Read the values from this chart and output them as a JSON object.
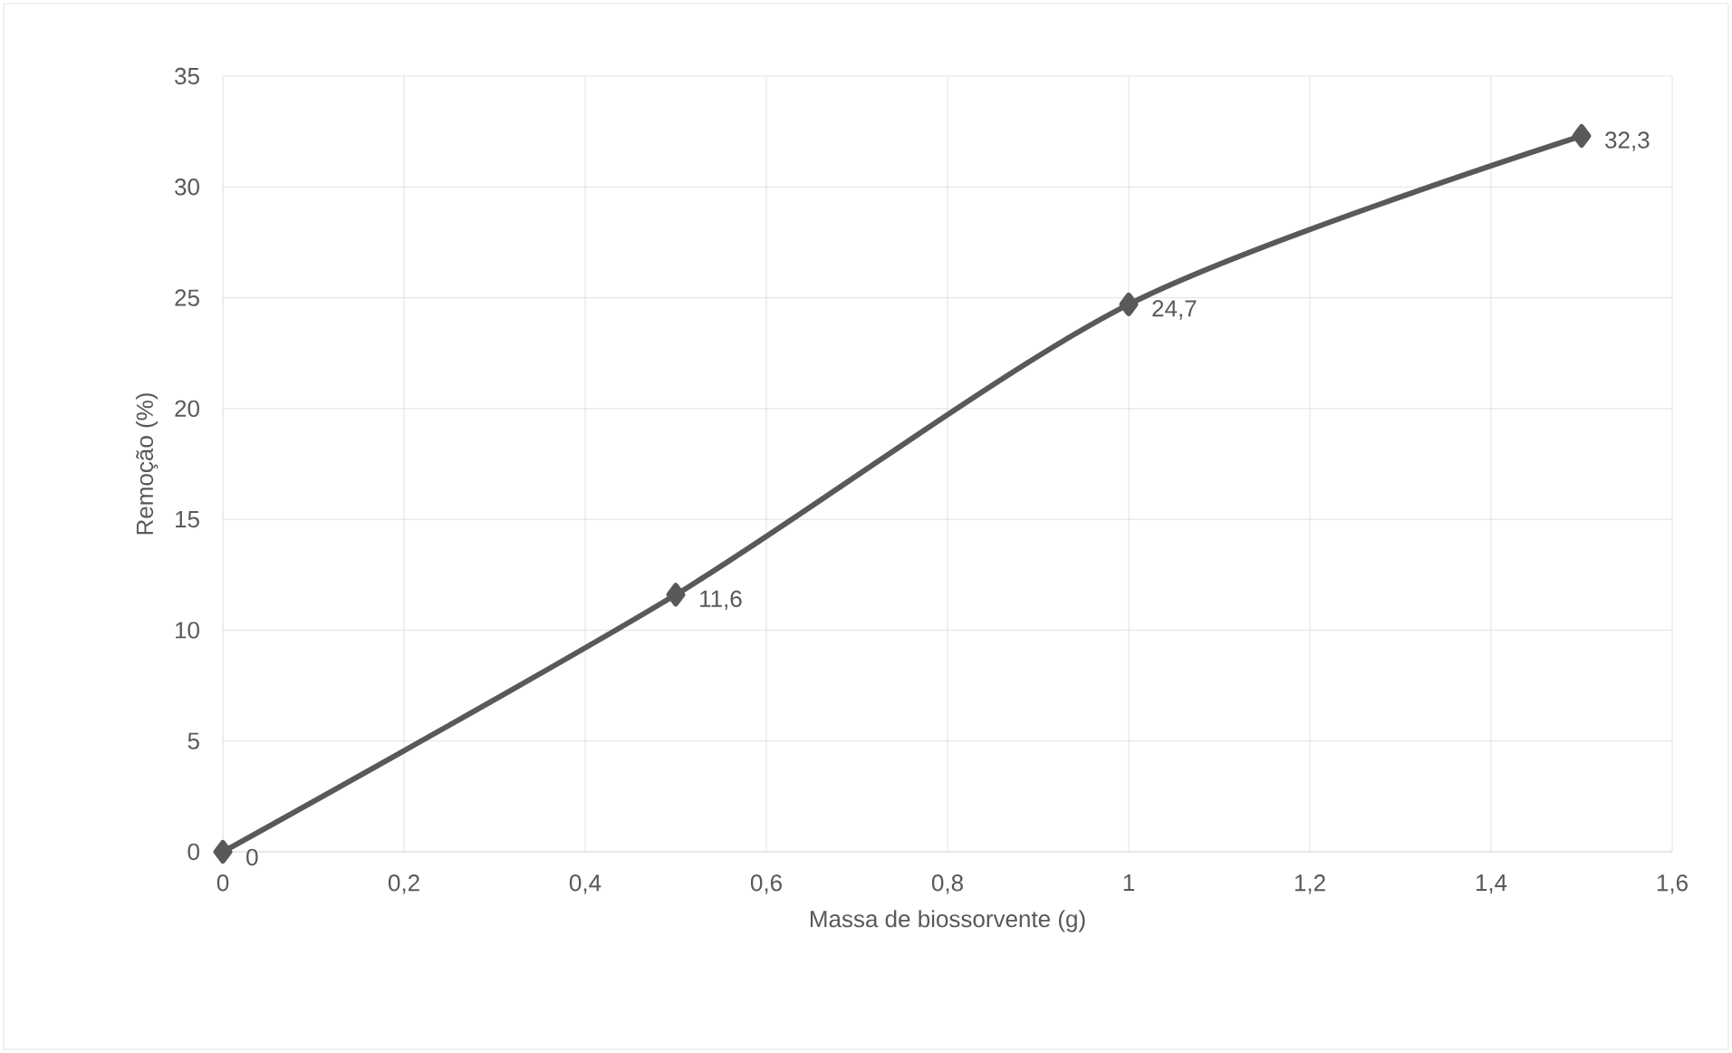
{
  "chart_data": {
    "type": "line",
    "xlabel": "Massa de biossorvente (g)",
    "ylabel": "Remoção (%)",
    "x": [
      0,
      0.5,
      1,
      1.5
    ],
    "series": [
      {
        "color": "#595959",
        "values": [
          0,
          11.6,
          24.7,
          32.3
        ],
        "value_labels": [
          "0",
          "11,6",
          "24,7",
          "32,3"
        ]
      }
    ],
    "xlim": [
      0,
      1.6
    ],
    "xticks": [
      0,
      {
        "value": 0.2,
        "label": "0,2"
      },
      {
        "value": 0.4,
        "label": "0,4"
      },
      {
        "value": 0.6,
        "label": "0,6"
      },
      {
        "value": 0.8,
        "label": "0,8"
      },
      1,
      {
        "value": 1.2,
        "label": "1,2"
      },
      {
        "value": 1.4,
        "label": "1,4"
      },
      {
        "value": 1.6,
        "label": "1,6"
      }
    ],
    "ylim": [
      0,
      35
    ],
    "yticks": [
      0,
      5,
      10,
      15,
      20,
      25,
      30,
      35
    ],
    "grid": true,
    "marker": "diamond",
    "line_style": "solid"
  }
}
